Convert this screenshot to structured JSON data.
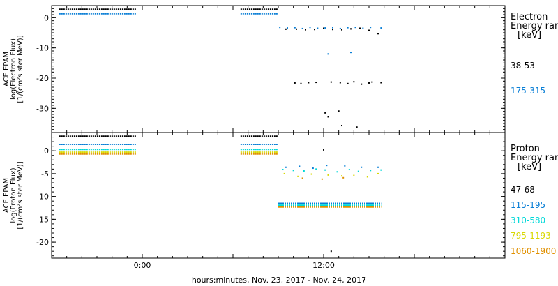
{
  "chart_data": {
    "type": "scatter",
    "xlabel": "hours:minutes, Nov. 23, 2017 - Nov. 24, 2017",
    "xlim": [
      -6,
      24
    ],
    "xticks": [
      {
        "value": 0,
        "label": "0:00"
      },
      {
        "value": 12,
        "label": "12:00"
      }
    ],
    "panels": [
      {
        "id": "electron",
        "ylabel_lines": [
          "ACE EPAM",
          "log(Electron Flux)",
          "[1/(cm²s ster MeV)]"
        ],
        "ylim": [
          -38,
          4
        ],
        "yticks": [
          0,
          -10,
          -20,
          -30
        ],
        "legend_title": [
          "Electron",
          "Energy range",
          "[keV]"
        ],
        "series": [
          {
            "name": "38-53",
            "color": "#000000",
            "segments": [
              [
                -5.5,
                -0.4,
                2.8
              ],
              [
                6.5,
                9.0,
                2.8
              ]
            ],
            "points": [
              [
                9.5,
                -3.8
              ],
              [
                10.2,
                -3.8
              ],
              [
                10.8,
                -4
              ],
              [
                11.4,
                -3.9
              ],
              [
                12,
                -3.5
              ],
              [
                12.6,
                -3.9
              ],
              [
                13.2,
                -4
              ],
              [
                13.8,
                -3.7
              ],
              [
                14.4,
                -3.5
              ],
              [
                15.0,
                -4.2
              ],
              [
                15.6,
                -5.3
              ],
              [
                10.1,
                -21.6
              ],
              [
                10.5,
                -21.8
              ],
              [
                11.0,
                -21.5
              ],
              [
                11.5,
                -21.4
              ],
              [
                12.5,
                -21.3
              ],
              [
                13.1,
                -21.5
              ],
              [
                13.6,
                -21.8
              ],
              [
                14.0,
                -21.2
              ],
              [
                14.5,
                -22.0
              ],
              [
                15.0,
                -21.6
              ],
              [
                15.2,
                -21.3
              ],
              [
                15.8,
                -21.5
              ],
              [
                12.1,
                -31.5
              ],
              [
                12.3,
                -32.8
              ],
              [
                13.0,
                -30.9
              ],
              [
                13.2,
                -35.7
              ],
              [
                14.2,
                -36.2
              ]
            ]
          },
          {
            "name": "175-315",
            "color": "#0a7fd6",
            "segments": [
              [
                -5.5,
                -0.4,
                1.3
              ],
              [
                6.5,
                9.0,
                1.3
              ]
            ],
            "points": [
              [
                9.1,
                -3.2
              ],
              [
                9.6,
                -3.4
              ],
              [
                10.1,
                -3.3
              ],
              [
                10.6,
                -3.6
              ],
              [
                11.1,
                -3.2
              ],
              [
                11.6,
                -3.5
              ],
              [
                12.1,
                -3.4
              ],
              [
                12.6,
                -3.3
              ],
              [
                13.1,
                -3.6
              ],
              [
                13.6,
                -3.3
              ],
              [
                14.1,
                -3.2
              ],
              [
                14.6,
                -3.5
              ],
              [
                15.1,
                -3.2
              ],
              [
                15.8,
                -3.4
              ],
              [
                12.3,
                -12
              ],
              [
                13.8,
                -11.5
              ]
            ]
          }
        ]
      },
      {
        "id": "proton",
        "ylabel_lines": [
          "ACE EPAM",
          "log(Proton Flux)",
          "[1/(cm²s ster MeV)]"
        ],
        "ylim": [
          -23.5,
          4
        ],
        "yticks": [
          0,
          -5,
          -10,
          -15,
          -20
        ],
        "legend_title": [
          "Proton",
          "Energy range",
          "[keV]"
        ],
        "series": [
          {
            "name": "47-68",
            "color": "#000000",
            "segments": [
              [
                -5.5,
                -0.4,
                3.2
              ],
              [
                6.5,
                9.0,
                3.2
              ]
            ],
            "points": [
              [
                12.0,
                0.2
              ],
              [
                12.5,
                -22.0
              ]
            ]
          },
          {
            "name": "115-195",
            "color": "#0a7fd6",
            "segments": [
              [
                -5.5,
                -0.4,
                1.4
              ],
              [
                6.5,
                9.0,
                1.4
              ],
              [
                9.0,
                15.8,
                -11.5
              ]
            ],
            "points": [
              [
                9.5,
                -3.6
              ],
              [
                10.4,
                -3.4
              ],
              [
                11.3,
                -3.8
              ],
              [
                12.2,
                -3.2
              ],
              [
                13.4,
                -3.3
              ],
              [
                14.5,
                -3.6
              ],
              [
                15.6,
                -3.6
              ]
            ]
          },
          {
            "name": "310-580",
            "color": "#00d8d8",
            "segments": [
              [
                -5.5,
                -0.4,
                0.3
              ],
              [
                6.5,
                9.0,
                0.3
              ],
              [
                9.0,
                15.8,
                -11.9
              ]
            ],
            "points": [
              [
                9.3,
                -4.1
              ],
              [
                10.0,
                -4.3
              ],
              [
                10.7,
                -4.4
              ],
              [
                11.5,
                -4.0
              ],
              [
                12.1,
                -4.2
              ],
              [
                12.9,
                -4.6
              ],
              [
                13.7,
                -4.1
              ],
              [
                14.3,
                -4.5
              ],
              [
                15.1,
                -4.3
              ],
              [
                15.8,
                -4.2
              ]
            ]
          },
          {
            "name": "795-1193",
            "color": "#d8d800",
            "segments": [
              [
                -5.5,
                -0.4,
                -0.3
              ],
              [
                6.5,
                9.0,
                -0.3
              ],
              [
                9.0,
                15.8,
                -12.2
              ]
            ],
            "points": [
              [
                9.4,
                -5.0
              ],
              [
                10.3,
                -5.6
              ],
              [
                11.2,
                -5.1
              ],
              [
                12.3,
                -5.3
              ],
              [
                13.2,
                -5.5
              ],
              [
                14.0,
                -5.4
              ],
              [
                14.9,
                -5.7
              ],
              [
                15.6,
                -5.0
              ]
            ]
          },
          {
            "name": "1060-1900",
            "color": "#e09000",
            "segments": [
              [
                -5.5,
                -0.4,
                -0.7
              ],
              [
                6.5,
                9.0,
                -0.7
              ],
              [
                9.0,
                15.8,
                -12.3
              ]
            ],
            "points": [
              [
                10.6,
                -6.0
              ],
              [
                11.9,
                -6.2
              ],
              [
                13.3,
                -5.9
              ]
            ]
          }
        ]
      }
    ]
  }
}
